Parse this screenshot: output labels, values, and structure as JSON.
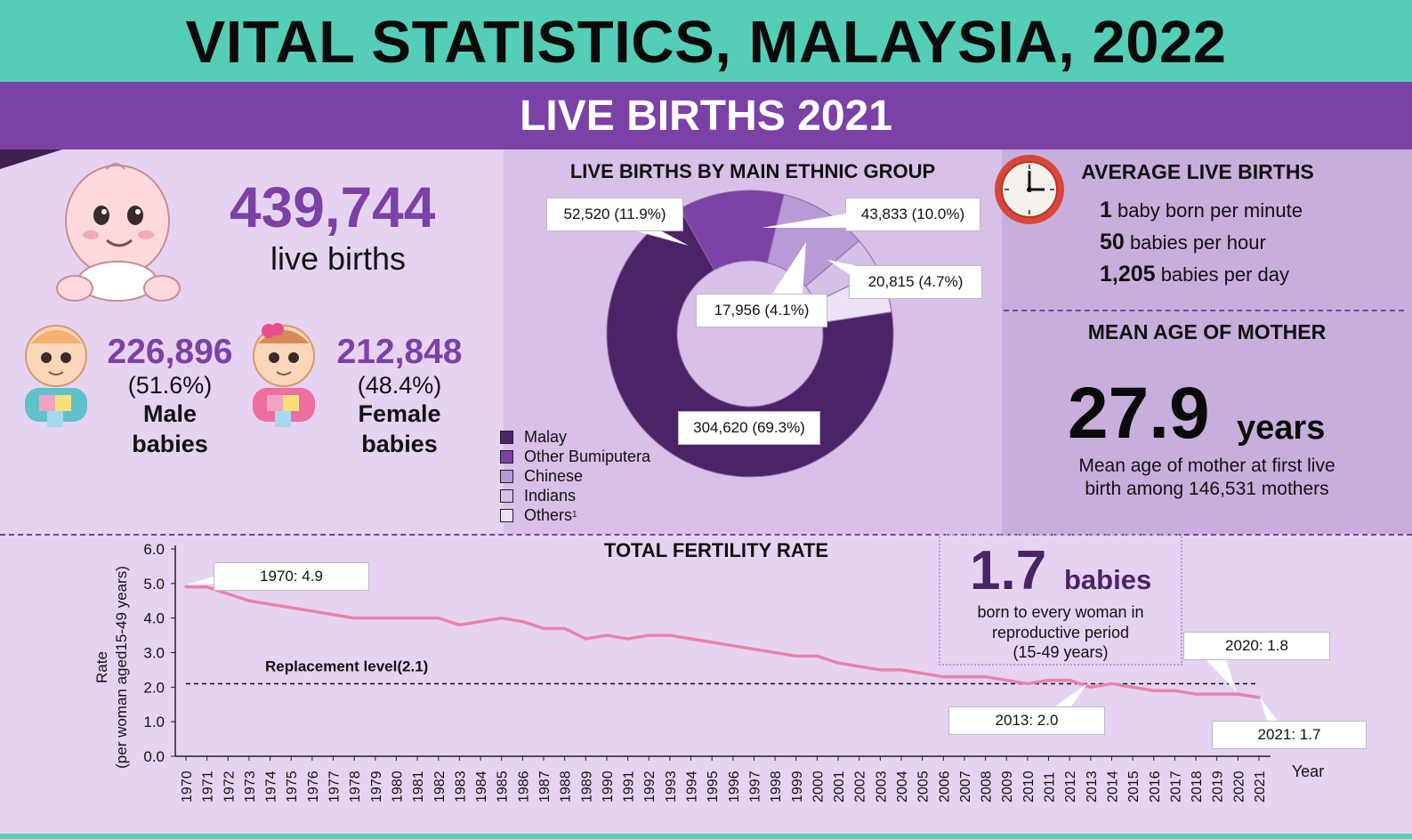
{
  "header": {
    "title": "VITAL STATISTICS, MALAYSIA, 2022",
    "subtitle": "LIVE BIRTHS 2021"
  },
  "totals": {
    "live_births_value": "439,744",
    "live_births_label": "live births",
    "male_value": "226,896",
    "male_pct": "(51.6%)",
    "male_label_1": "Male",
    "male_label_2": "babies",
    "female_value": "212,848",
    "female_pct": "(48.4%)",
    "female_label_1": "Female",
    "female_label_2": "babies"
  },
  "ethnic": {
    "title": "LIVE BIRTHS BY MAIN ETHNIC GROUP",
    "labels": {
      "malay": "304,620 (69.3%)",
      "other_bumi": "52,520 (11.9%)",
      "chinese": "43,833 (10.0%)",
      "indians": "17,956 (4.1%)",
      "others": "20,815 (4.7%)"
    },
    "legend": [
      "Malay",
      "Other Bumiputera",
      "Chinese",
      "Indians",
      "Others"
    ],
    "legend_others_superscript": "1"
  },
  "average": {
    "title": "AVERAGE LIVE BIRTHS",
    "rows": [
      {
        "num": "1",
        "text": "baby born per minute"
      },
      {
        "num": "50",
        "text": "babies per hour"
      },
      {
        "num": "1,205",
        "text": "babies per day"
      }
    ]
  },
  "mother": {
    "title": "MEAN AGE OF MOTHER",
    "value": "27.9",
    "unit": "years",
    "note_1": "Mean age of mother at first live",
    "note_2": "birth among 146,531 mothers"
  },
  "tfr": {
    "title": "TOTAL FERTILITY RATE",
    "big_value": "1.7",
    "big_unit": "babies",
    "box_line_1": "born to every woman in",
    "box_line_2": "reproductive period",
    "box_line_3": "(15-49 years)",
    "replacement_label": "Replacement level(2.1)",
    "callouts": {
      "c1970": "1970: 4.9",
      "c2013": "2013: 2.0",
      "c2020": "2020: 1.8",
      "c2021": "2021: 1.7"
    },
    "ylabel_1": "Rate",
    "ylabel_2": "(per woman aged15-49 years)",
    "xlabel": "Year"
  },
  "colors": {
    "teal": "#55ceb8",
    "purple": "#7b41a6",
    "dark_purple": "#4a2466",
    "line_pink": "#e882ad"
  },
  "chart_data": [
    {
      "type": "pie",
      "title": "LIVE BIRTHS BY MAIN ETHNIC GROUP",
      "categories": [
        "Malay",
        "Other Bumiputera",
        "Chinese",
        "Indians",
        "Others"
      ],
      "values": [
        304620,
        52520,
        43833,
        17956,
        20815
      ],
      "percent": [
        69.3,
        11.9,
        10.0,
        4.1,
        4.7
      ],
      "colors": [
        "#4a2466",
        "#7b41a6",
        "#b79ad6",
        "#d5c0e8",
        "#ece1f5"
      ],
      "legend_position": "bottom-left"
    },
    {
      "type": "line",
      "title": "TOTAL FERTILITY RATE",
      "xlabel": "Year",
      "ylabel": "Rate (per woman aged15-49 years)",
      "ylim": [
        0,
        6
      ],
      "yticks": [
        "0.0",
        "1.0",
        "2.0",
        "3.0",
        "4.0",
        "5.0",
        "6.0"
      ],
      "x": [
        1970,
        1971,
        1972,
        1973,
        1974,
        1975,
        1976,
        1977,
        1978,
        1979,
        1980,
        1981,
        1982,
        1983,
        1984,
        1985,
        1986,
        1987,
        1988,
        1989,
        1990,
        1991,
        1992,
        1993,
        1994,
        1995,
        1996,
        1997,
        1998,
        1999,
        2000,
        2001,
        2002,
        2003,
        2004,
        2005,
        2006,
        2007,
        2008,
        2009,
        2010,
        2011,
        2012,
        2013,
        2014,
        2015,
        2016,
        2017,
        2018,
        2019,
        2020,
        2021
      ],
      "series": [
        {
          "values": [
            4.9,
            4.9,
            4.7,
            4.5,
            4.4,
            4.3,
            4.2,
            4.1,
            4.0,
            4.0,
            4.0,
            4.0,
            4.0,
            3.8,
            3.9,
            4.0,
            3.9,
            3.7,
            3.7,
            3.4,
            3.5,
            3.4,
            3.5,
            3.5,
            3.4,
            3.3,
            3.2,
            3.1,
            3.0,
            2.9,
            2.9,
            2.7,
            2.6,
            2.5,
            2.5,
            2.4,
            2.3,
            2.3,
            2.3,
            2.2,
            2.1,
            2.2,
            2.2,
            2.0,
            2.1,
            2.0,
            1.9,
            1.9,
            1.8,
            1.8,
            1.8,
            1.7
          ]
        }
      ],
      "reference_line": {
        "value": 2.1,
        "label": "Replacement level(2.1)"
      },
      "grid": false
    }
  ]
}
